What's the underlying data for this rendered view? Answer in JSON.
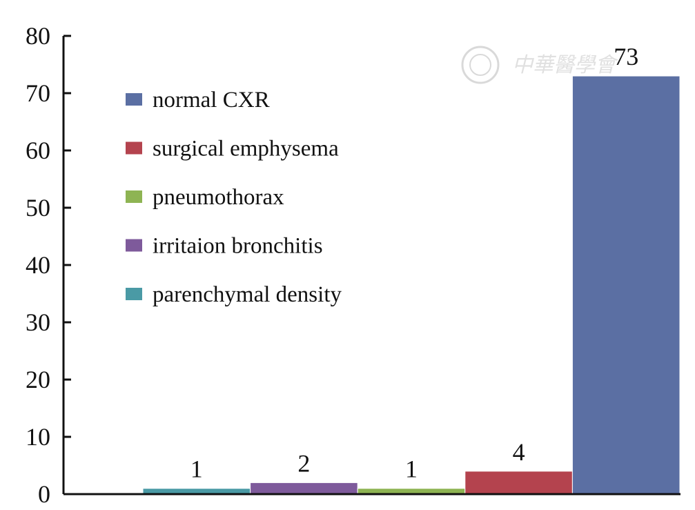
{
  "chart_data": {
    "type": "bar",
    "categories": [
      "",
      "",
      "",
      "",
      ""
    ],
    "series": [
      {
        "name": "parenchymal density",
        "color": "#4a9aa5",
        "values": [
          1,
          null,
          null,
          null,
          null
        ]
      },
      {
        "name": "irritaion bronchitis",
        "color": "#7e5a9b",
        "values": [
          null,
          2,
          null,
          null,
          null
        ]
      },
      {
        "name": "pneumothorax",
        "color": "#8eb453",
        "values": [
          null,
          null,
          1,
          null,
          null
        ]
      },
      {
        "name": "surgical emphysema",
        "color": "#b4434e",
        "values": [
          null,
          null,
          null,
          4,
          null
        ]
      },
      {
        "name": "normal CXR",
        "color": "#5b6fa3",
        "values": [
          null,
          null,
          null,
          null,
          73
        ]
      }
    ],
    "data_labels": [
      "1",
      "2",
      "1",
      "4",
      "73"
    ],
    "yticks": [
      "0",
      "10",
      "20",
      "30",
      "40",
      "50",
      "60",
      "70",
      "80"
    ],
    "ylim": [
      0,
      80
    ],
    "legend_order": [
      "normal CXR",
      "surgical emphysema",
      "pneumothorax",
      "irritaion bronchitis",
      "parenchymal density"
    ],
    "legend_placement": "upper-left inside plot",
    "grid": false,
    "title": "",
    "xlabel": "",
    "ylabel": ""
  },
  "watermark": {
    "text": "中華醫學會"
  }
}
